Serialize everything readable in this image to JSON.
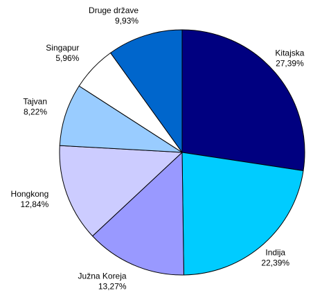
{
  "chart_data": {
    "type": "pie",
    "categories": [
      "Kitajska",
      "Indija",
      "Južna Koreja",
      "Hongkong",
      "Tajvan",
      "Singapur",
      "Druge države"
    ],
    "values": [
      27.39,
      22.39,
      13.27,
      12.84,
      8.22,
      5.96,
      9.93
    ],
    "value_labels": [
      "27,39%",
      "22,39%",
      "13,27%",
      "12,84%",
      "8,22%",
      "5,96%",
      "9,93%"
    ],
    "colors": [
      "#000080",
      "#00ccff",
      "#9999ff",
      "#ccccff",
      "#99ccff",
      "#ffffff",
      "#0066cc"
    ]
  }
}
